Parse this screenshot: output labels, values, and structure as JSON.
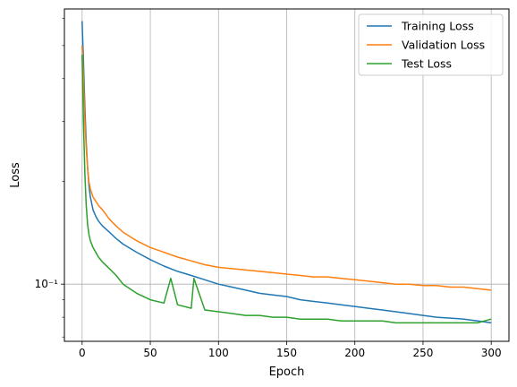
{
  "chart_data": {
    "type": "line",
    "title": "",
    "xlabel": "Epoch",
    "ylabel": "Loss",
    "xlim": [
      -13,
      313
    ],
    "ylim": [
      0.068,
      0.64
    ],
    "yscale": "log",
    "grid": true,
    "legend_position": "top-right",
    "x_ticks": [
      "0",
      "50",
      "100",
      "150",
      "200",
      "250",
      "300"
    ],
    "y_major_ticks": [
      {
        "value": 0.1,
        "label": "10⁻¹"
      }
    ],
    "y_minor_ticks": [
      0.07,
      0.08,
      0.09,
      0.2,
      0.3,
      0.4,
      0.5,
      0.6
    ],
    "series": [
      {
        "name": "Training Loss",
        "color": "#1f77b4",
        "x": [
          0,
          1,
          2,
          3,
          4,
          5,
          6,
          8,
          10,
          12,
          15,
          20,
          25,
          30,
          40,
          50,
          60,
          70,
          80,
          90,
          100,
          110,
          120,
          130,
          140,
          150,
          160,
          170,
          180,
          190,
          200,
          210,
          220,
          230,
          240,
          250,
          260,
          270,
          280,
          290,
          300
        ],
        "y": [
          0.59,
          0.45,
          0.33,
          0.26,
          0.22,
          0.195,
          0.18,
          0.165,
          0.158,
          0.153,
          0.148,
          0.142,
          0.136,
          0.131,
          0.124,
          0.118,
          0.113,
          0.109,
          0.106,
          0.103,
          0.1,
          0.098,
          0.096,
          0.094,
          0.093,
          0.092,
          0.09,
          0.089,
          0.088,
          0.087,
          0.086,
          0.085,
          0.084,
          0.083,
          0.082,
          0.081,
          0.08,
          0.0795,
          0.079,
          0.078,
          0.077
        ]
      },
      {
        "name": "Validation Loss",
        "color": "#ff7f0e",
        "x": [
          0,
          1,
          2,
          3,
          4,
          5,
          6,
          8,
          10,
          12,
          15,
          20,
          25,
          30,
          40,
          50,
          60,
          70,
          80,
          90,
          100,
          110,
          120,
          130,
          140,
          150,
          160,
          170,
          180,
          190,
          200,
          210,
          220,
          230,
          240,
          250,
          260,
          270,
          280,
          290,
          300
        ],
        "y": [
          0.5,
          0.4,
          0.3,
          0.25,
          0.22,
          0.2,
          0.19,
          0.18,
          0.175,
          0.17,
          0.165,
          0.155,
          0.148,
          0.142,
          0.134,
          0.128,
          0.124,
          0.12,
          0.117,
          0.114,
          0.112,
          0.111,
          0.11,
          0.109,
          0.108,
          0.107,
          0.106,
          0.105,
          0.105,
          0.104,
          0.103,
          0.102,
          0.101,
          0.1,
          0.1,
          0.099,
          0.099,
          0.098,
          0.098,
          0.097,
          0.096
        ]
      },
      {
        "name": "Test Loss",
        "color": "#2ca02c",
        "x": [
          0,
          1,
          2,
          3,
          4,
          5,
          6,
          8,
          10,
          12,
          15,
          20,
          25,
          30,
          40,
          50,
          60,
          65,
          70,
          80,
          82,
          90,
          100,
          110,
          120,
          130,
          140,
          150,
          160,
          170,
          180,
          190,
          200,
          210,
          220,
          230,
          240,
          250,
          260,
          270,
          280,
          290,
          300
        ],
        "y": [
          0.47,
          0.3,
          0.21,
          0.17,
          0.15,
          0.14,
          0.134,
          0.128,
          0.124,
          0.12,
          0.116,
          0.111,
          0.106,
          0.1,
          0.094,
          0.09,
          0.088,
          0.104,
          0.087,
          0.085,
          0.104,
          0.084,
          0.083,
          0.082,
          0.081,
          0.081,
          0.08,
          0.08,
          0.079,
          0.079,
          0.079,
          0.078,
          0.078,
          0.078,
          0.078,
          0.077,
          0.077,
          0.077,
          0.077,
          0.077,
          0.077,
          0.077,
          0.079
        ]
      }
    ]
  }
}
